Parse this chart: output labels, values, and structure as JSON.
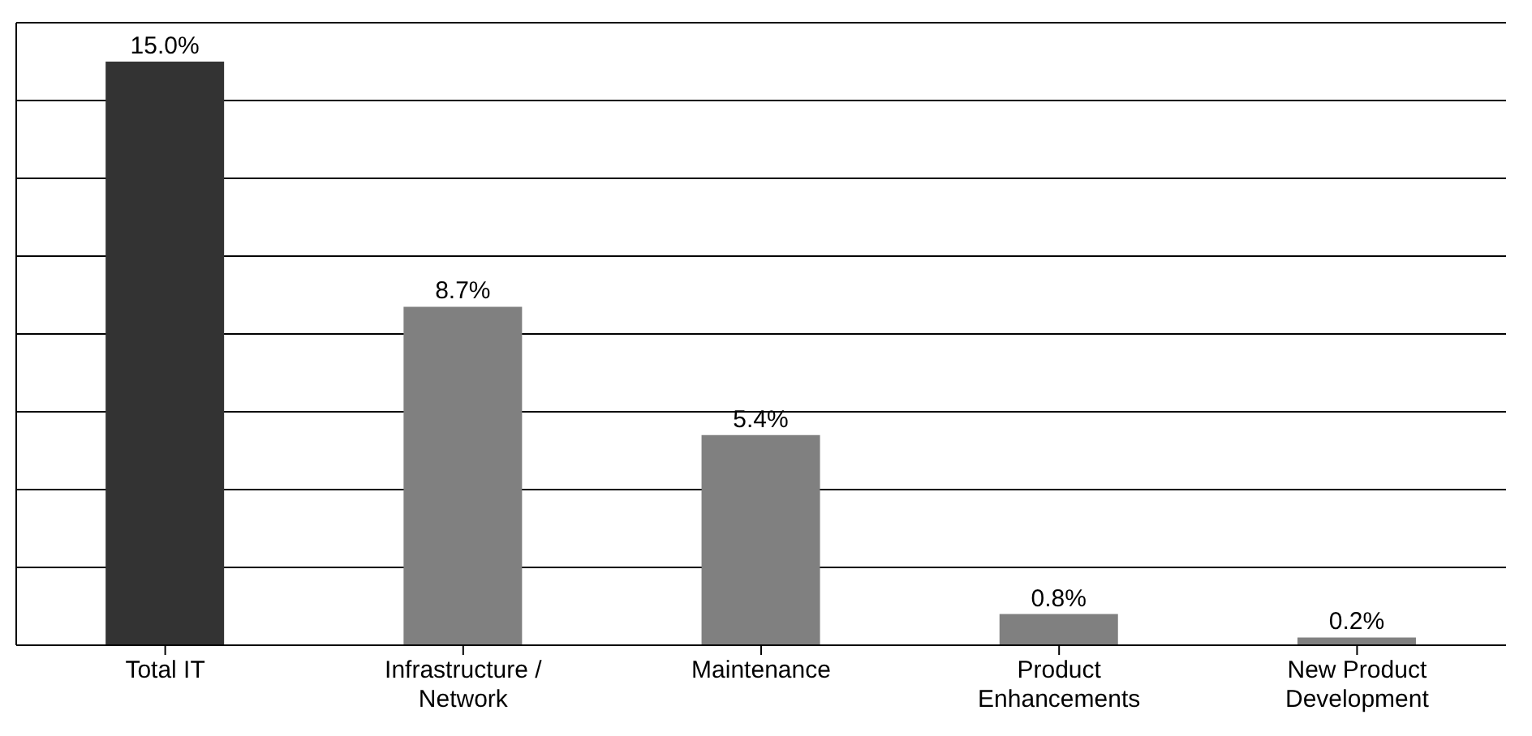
{
  "chart_data": {
    "type": "bar",
    "categories": [
      "Total IT",
      "Infrastructure / Network",
      "Maintenance",
      "Product Enhancements",
      "New Product Development"
    ],
    "values": [
      15.0,
      8.7,
      5.4,
      0.8,
      0.2
    ],
    "colors": [
      "#333333",
      "#808080",
      "#808080",
      "#808080",
      "#808080"
    ],
    "value_labels": [
      "15.0%",
      "8.7%",
      "5.4%",
      "0.8%",
      "0.2%"
    ],
    "ylim": [
      0,
      16
    ],
    "grid": "y",
    "tick_labels": "x"
  }
}
